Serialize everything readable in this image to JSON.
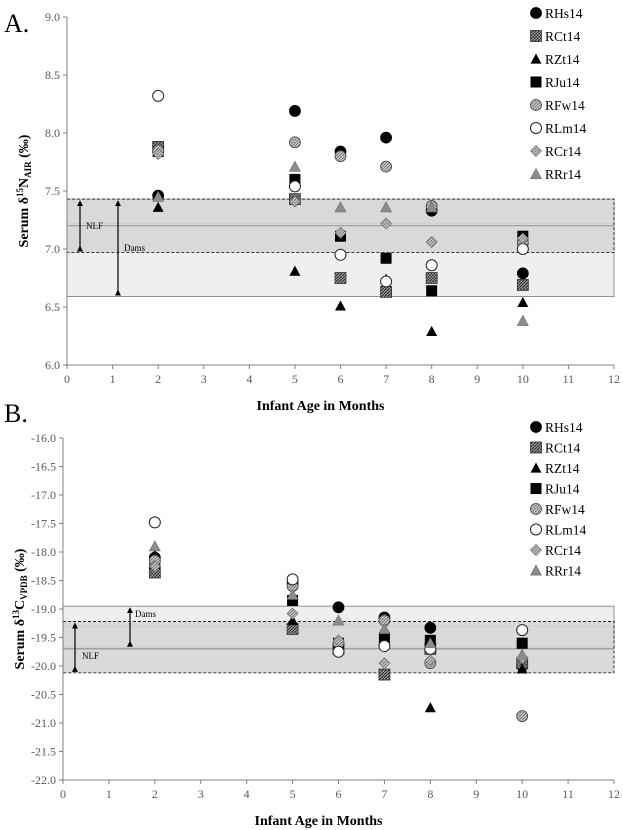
{
  "chart_data": [
    {
      "panel": "A.",
      "type": "scatter",
      "xlabel": "Infant Age in Months",
      "ylabel": {
        "pre": "Serum δ",
        "sup": "15",
        "mid": "N",
        "sub": "AIR",
        "post": " (‰)"
      },
      "xlim": [
        0,
        12
      ],
      "ylim": [
        6.0,
        9.0
      ],
      "x_ticks": [
        0,
        1,
        2,
        3,
        4,
        5,
        6,
        7,
        8,
        9,
        10,
        11,
        12
      ],
      "y_ticks": [
        6.0,
        6.5,
        7.0,
        7.5,
        8.0,
        8.5,
        9.0
      ],
      "grid": false,
      "legend_position": "top-right",
      "bands": [
        {
          "label": "NLF",
          "y_from": 6.97,
          "y_to": 7.43,
          "shade": "#d6d6d6",
          "style": "dashed",
          "mean": 7.2
        },
        {
          "label": "Dams",
          "y_from": 6.59,
          "y_to": 7.43,
          "shade": "#efefef",
          "style": "solid",
          "mean": 7.22
        }
      ],
      "series": [
        {
          "name": "RHs14",
          "marker": "circle",
          "fill": "#000000",
          "points": [
            [
              2,
              7.46
            ],
            [
              5,
              8.19
            ],
            [
              6,
              7.84
            ],
            [
              7,
              7.96
            ],
            [
              8,
              7.33
            ],
            [
              10,
              6.79
            ]
          ]
        },
        {
          "name": "RCt14",
          "marker": "square-hatch",
          "fill": "#555555",
          "points": [
            [
              2,
              7.88
            ],
            [
              5,
              7.43
            ],
            [
              6,
              6.75
            ],
            [
              7,
              6.63
            ],
            [
              8,
              6.75
            ],
            [
              10,
              6.69
            ]
          ]
        },
        {
          "name": "RZt14",
          "marker": "triangle",
          "fill": "#000000",
          "points": [
            [
              2,
              7.36
            ],
            [
              5,
              6.81
            ],
            [
              6,
              6.51
            ],
            [
              7,
              6.74
            ],
            [
              8,
              6.29
            ],
            [
              10,
              6.54
            ]
          ]
        },
        {
          "name": "RJu14",
          "marker": "square",
          "fill": "#000000",
          "points": [
            [
              2,
              7.84
            ],
            [
              5,
              7.6
            ],
            [
              6,
              7.11
            ],
            [
              7,
              6.92
            ],
            [
              8,
              6.64
            ],
            [
              10,
              7.11
            ]
          ]
        },
        {
          "name": "RFw14",
          "marker": "circle-hatch",
          "fill": "#a6a6a6",
          "points": [
            [
              2,
              7.85
            ],
            [
              5,
              7.92
            ],
            [
              6,
              7.8
            ],
            [
              7,
              7.71
            ],
            [
              8,
              7.37
            ],
            [
              10,
              7.05
            ]
          ]
        },
        {
          "name": "RLm14",
          "marker": "circle-open",
          "fill": "#ffffff",
          "points": [
            [
              2,
              8.32
            ],
            [
              5,
              7.54
            ],
            [
              6,
              6.95
            ],
            [
              7,
              6.72
            ],
            [
              8,
              6.86
            ],
            [
              10,
              7.0
            ]
          ]
        },
        {
          "name": "RCr14",
          "marker": "diamond-open",
          "fill": "#ffffff",
          "points": [
            [
              2,
              7.82
            ],
            [
              5,
              7.41
            ],
            [
              6,
              7.14
            ],
            [
              7,
              7.22
            ],
            [
              8,
              7.06
            ],
            [
              10,
              7.09
            ]
          ]
        },
        {
          "name": "RRr14",
          "marker": "triangle-gray",
          "fill": "#8c8c8c",
          "points": [
            [
              2,
              7.45
            ],
            [
              5,
              7.71
            ],
            [
              6,
              7.36
            ],
            [
              7,
              7.36
            ],
            [
              8,
              7.36
            ],
            [
              10,
              6.38
            ]
          ]
        }
      ]
    },
    {
      "panel": "B.",
      "type": "scatter",
      "xlabel": "Infant Age in Months",
      "ylabel": {
        "pre": "Serum δ",
        "sup": "13",
        "mid": "C",
        "sub": "VPDB",
        "post": " (‰)"
      },
      "xlim": [
        0,
        12
      ],
      "ylim": [
        -22.0,
        -16.0
      ],
      "x_ticks": [
        0,
        1,
        2,
        3,
        4,
        5,
        6,
        7,
        8,
        9,
        10,
        11,
        12
      ],
      "y_ticks": [
        -22.0,
        -21.5,
        -21.0,
        -20.5,
        -20.0,
        -19.5,
        -19.0,
        -18.5,
        -18.0,
        -17.5,
        -17.0,
        -16.5,
        -16.0
      ],
      "grid": false,
      "legend_position": "top-right",
      "bands": [
        {
          "label": "Dams",
          "y_from": -19.68,
          "y_to": -18.95,
          "shade": "#efefef",
          "style": "solid",
          "mean": -19.3
        },
        {
          "label": "NLF",
          "y_from": -20.12,
          "y_to": -19.22,
          "shade": "#d6d6d6",
          "style": "dashed",
          "mean": -19.7
        }
      ],
      "series": [
        {
          "name": "RHs14",
          "marker": "circle",
          "fill": "#000000",
          "points": [
            [
              2,
              -18.1
            ],
            [
              5,
              -18.55
            ],
            [
              6,
              -18.97
            ],
            [
              7,
              -19.15
            ],
            [
              8,
              -19.33
            ],
            [
              10,
              -20.0
            ]
          ]
        },
        {
          "name": "RCt14",
          "marker": "square-hatch",
          "fill": "#555555",
          "points": [
            [
              2,
              -18.36
            ],
            [
              5,
              -19.35
            ],
            [
              6,
              -19.7
            ],
            [
              7,
              -20.15
            ],
            [
              8,
              -19.7
            ],
            [
              10,
              -19.95
            ]
          ]
        },
        {
          "name": "RZt14",
          "marker": "triangle",
          "fill": "#000000",
          "points": [
            [
              2,
              -18.05
            ],
            [
              5,
              -19.2
            ],
            [
              6,
              -19.62
            ],
            [
              7,
              -19.5
            ],
            [
              8,
              -20.73
            ],
            [
              10,
              -20.05
            ]
          ]
        },
        {
          "name": "RJu14",
          "marker": "square",
          "fill": "#000000",
          "points": [
            [
              2,
              -18.2
            ],
            [
              5,
              -18.85
            ],
            [
              6,
              -19.6
            ],
            [
              7,
              -19.5
            ],
            [
              8,
              -19.55
            ],
            [
              10,
              -19.6
            ]
          ]
        },
        {
          "name": "RFw14",
          "marker": "circle-hatch",
          "fill": "#a6a6a6",
          "points": [
            [
              2,
              -18.15
            ],
            [
              5,
              -18.6
            ],
            [
              6,
              -19.6
            ],
            [
              7,
              -19.2
            ],
            [
              8,
              -19.95
            ],
            [
              10,
              -20.88
            ]
          ]
        },
        {
          "name": "RLm14",
          "marker": "circle-open",
          "fill": "#ffffff",
          "points": [
            [
              2,
              -17.48
            ],
            [
              5,
              -18.48
            ],
            [
              6,
              -19.75
            ],
            [
              7,
              -19.65
            ],
            [
              8,
              -19.7
            ],
            [
              10,
              -19.37
            ]
          ]
        },
        {
          "name": "RCr14",
          "marker": "diamond-open",
          "fill": "#ffffff",
          "points": [
            [
              2,
              -18.25
            ],
            [
              5,
              -19.08
            ],
            [
              6,
              -19.55
            ],
            [
              7,
              -19.95
            ],
            [
              8,
              -19.9
            ],
            [
              10,
              -19.85
            ]
          ]
        },
        {
          "name": "RRr14",
          "marker": "triangle-gray",
          "fill": "#8c8c8c",
          "points": [
            [
              2,
              -17.9
            ],
            [
              5,
              -18.75
            ],
            [
              6,
              -19.2
            ],
            [
              7,
              -19.35
            ],
            [
              8,
              -19.6
            ],
            [
              10,
              -19.8
            ]
          ]
        }
      ]
    }
  ]
}
